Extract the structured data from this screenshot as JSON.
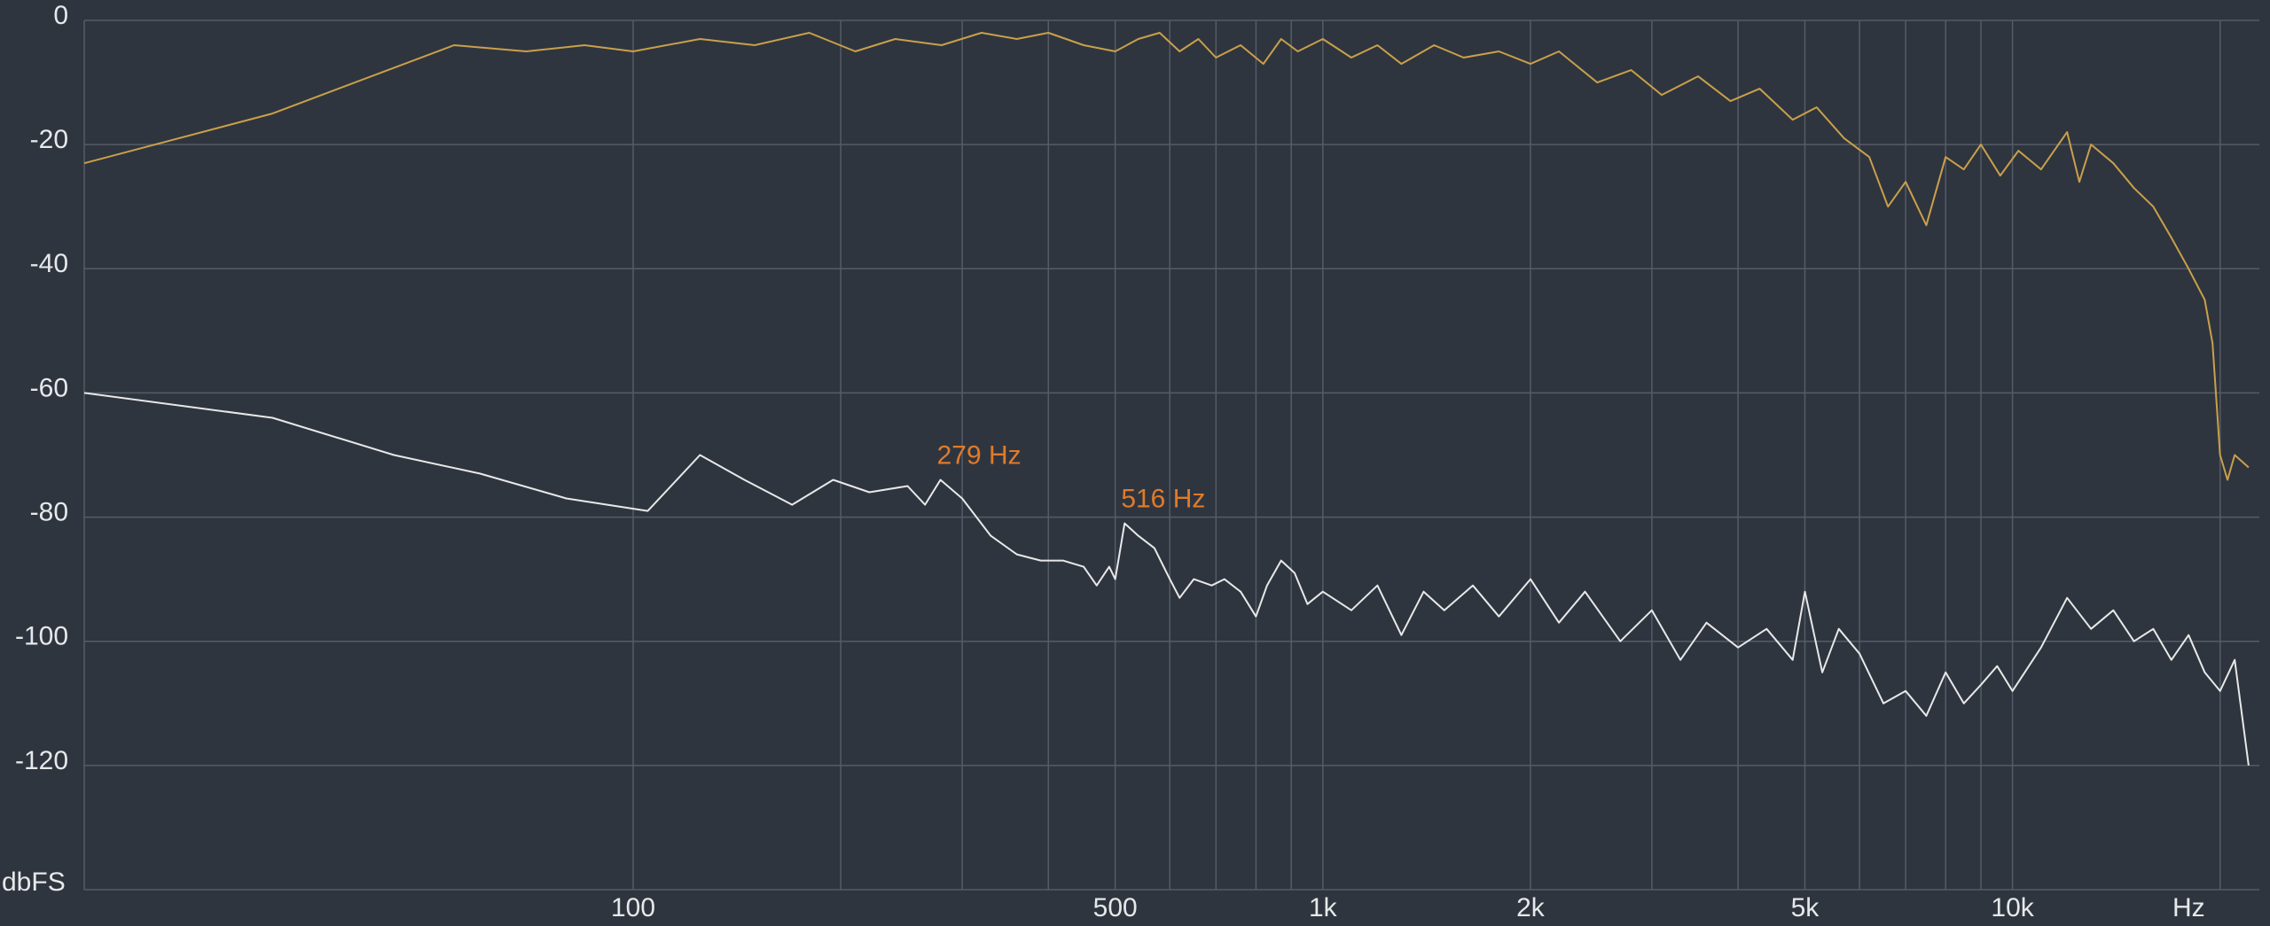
{
  "chart_data": {
    "type": "line",
    "xscale": "log",
    "grid": true,
    "xlabel": "Hz",
    "ylabel": "dbFS",
    "xlim": [
      16,
      22800
    ],
    "ylim": [
      -140,
      0
    ],
    "yticks": [
      0,
      -20,
      -40,
      -60,
      -80,
      -100,
      -120
    ],
    "xticks": [
      100,
      500,
      {
        "value": 1000,
        "label": "1k"
      },
      {
        "value": 2000,
        "label": "2k"
      },
      {
        "value": 5000,
        "label": "5k"
      },
      {
        "value": 10000,
        "label": "10k"
      }
    ],
    "xminor": [
      200,
      300,
      400,
      600,
      700,
      800,
      900,
      3000,
      4000,
      6000,
      7000,
      8000,
      9000,
      20000
    ],
    "series": [
      {
        "color": "#c9a04a",
        "x": [
          16,
          30,
          55,
          70,
          85,
          100,
          125,
          150,
          180,
          210,
          240,
          280,
          320,
          360,
          400,
          450,
          500,
          540,
          580,
          620,
          660,
          700,
          760,
          820,
          870,
          920,
          1000,
          1100,
          1200,
          1300,
          1450,
          1600,
          1800,
          2000,
          2200,
          2500,
          2800,
          3100,
          3500,
          3900,
          4300,
          4800,
          5200,
          5700,
          6200,
          6600,
          7000,
          7500,
          8000,
          8500,
          9000,
          9600,
          10200,
          11000,
          12000,
          12500,
          13000,
          14000,
          15000,
          16000,
          17000,
          18000,
          19000,
          19500,
          20000,
          20500,
          21000,
          22000
        ],
        "values": [
          -23,
          -15,
          -4,
          -5,
          -4,
          -5,
          -3,
          -4,
          -2,
          -5,
          -3,
          -4,
          -2,
          -3,
          -2,
          -4,
          -5,
          -3,
          -2,
          -5,
          -3,
          -6,
          -4,
          -7,
          -3,
          -5,
          -3,
          -6,
          -4,
          -7,
          -4,
          -6,
          -5,
          -7,
          -5,
          -10,
          -8,
          -12,
          -9,
          -13,
          -11,
          -16,
          -14,
          -19,
          -22,
          -30,
          -26,
          -33,
          -22,
          -24,
          -20,
          -25,
          -21,
          -24,
          -18,
          -26,
          -20,
          -23,
          -27,
          -30,
          -35,
          -40,
          -45,
          -52,
          -70,
          -74,
          -70,
          -72
        ]
      },
      {
        "color": "#e8e8e8",
        "x": [
          16,
          30,
          45,
          60,
          80,
          105,
          125,
          145,
          170,
          195,
          220,
          250,
          265,
          279,
          300,
          330,
          360,
          390,
          420,
          450,
          470,
          490,
          500,
          516,
          540,
          570,
          600,
          620,
          650,
          690,
          720,
          760,
          800,
          830,
          870,
          910,
          950,
          1000,
          1100,
          1200,
          1300,
          1400,
          1500,
          1650,
          1800,
          2000,
          2200,
          2400,
          2700,
          3000,
          3300,
          3600,
          4000,
          4400,
          4800,
          5000,
          5300,
          5600,
          6000,
          6500,
          7000,
          7500,
          8000,
          8500,
          9000,
          9500,
          10000,
          11000,
          12000,
          13000,
          14000,
          15000,
          16000,
          17000,
          18000,
          19000,
          20000,
          21000,
          22000
        ],
        "values": [
          -60,
          -64,
          -70,
          -73,
          -77,
          -79,
          -70,
          -74,
          -78,
          -74,
          -76,
          -75,
          -78,
          -74,
          -77,
          -83,
          -86,
          -87,
          -87,
          -88,
          -91,
          -88,
          -90,
          -81,
          -83,
          -85,
          -90,
          -93,
          -90,
          -91,
          -90,
          -92,
          -96,
          -91,
          -87,
          -89,
          -94,
          -92,
          -95,
          -91,
          -99,
          -92,
          -95,
          -91,
          -96,
          -90,
          -97,
          -92,
          -100,
          -95,
          -103,
          -97,
          -101,
          -98,
          -103,
          -92,
          -105,
          -98,
          -102,
          -110,
          -108,
          -112,
          -105,
          -110,
          -107,
          -104,
          -108,
          -101,
          -93,
          -98,
          -95,
          -100,
          -98,
          -103,
          -99,
          -105,
          -108,
          -103,
          -120
        ]
      }
    ],
    "annotation_color": "#e07b2a",
    "annotations": [
      {
        "text": "279 Hz",
        "x": 279,
        "y": -74
      },
      {
        "text": "516 Hz",
        "x": 516,
        "y": -81
      }
    ]
  }
}
